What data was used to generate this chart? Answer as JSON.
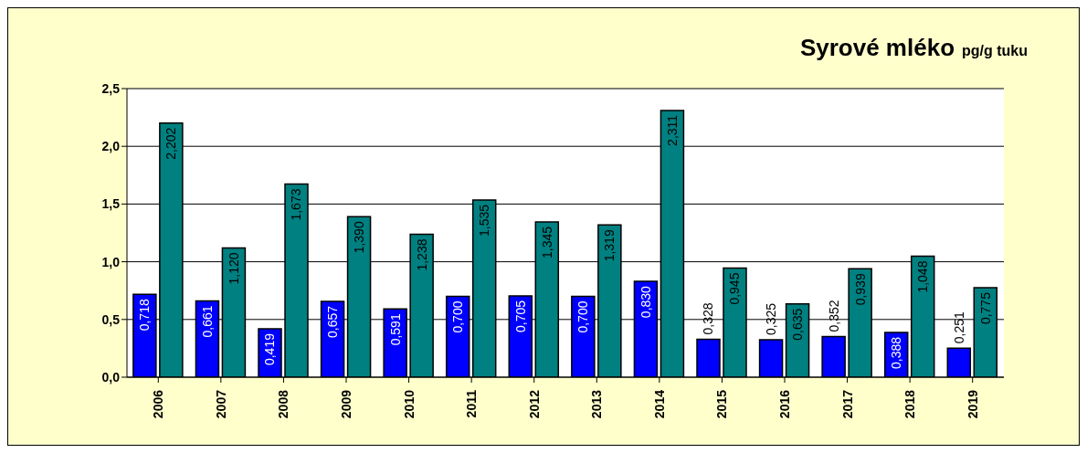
{
  "chart_data": {
    "type": "bar",
    "title": "Syrové mléko",
    "subtitle": "pg/g tuku",
    "categories": [
      "2006",
      "2007",
      "2008",
      "2009",
      "2010",
      "2011",
      "2012",
      "2013",
      "2014",
      "2015",
      "2016",
      "2017",
      "2018",
      "2019"
    ],
    "series": [
      {
        "color": "#0000ff",
        "values": [
          0.718,
          0.661,
          0.419,
          0.657,
          0.591,
          0.7,
          0.705,
          0.7,
          0.83,
          0.328,
          0.325,
          0.352,
          0.388,
          0.251
        ],
        "value_labels": [
          "0,718",
          "0,661",
          "0,419",
          "0,657",
          "0,591",
          "0,700",
          "0,705",
          "0,700",
          "0,830",
          "0,328",
          "0,325",
          "0,352",
          "0,388",
          "0,251"
        ]
      },
      {
        "color": "#008080",
        "values": [
          2.202,
          1.12,
          1.673,
          1.39,
          1.238,
          1.535,
          1.345,
          1.319,
          2.311,
          0.945,
          0.635,
          0.939,
          1.048,
          0.775
        ],
        "value_labels": [
          "2,202",
          "1,120",
          "1,673",
          "1,390",
          "1,238",
          "1,535",
          "1,345",
          "1,319",
          "2,311",
          "0,945",
          "0,635",
          "0,939",
          "1,048",
          "0,775"
        ]
      }
    ],
    "ylim": [
      0,
      2.5
    ],
    "yticks": [
      {
        "value": 0,
        "label": "0,0"
      },
      {
        "value": 0.5,
        "label": "0,5"
      },
      {
        "value": 1,
        "label": "1,0"
      },
      {
        "value": 1.5,
        "label": "1,5"
      },
      {
        "value": 2,
        "label": "2,0"
      },
      {
        "value": 2.5,
        "label": "2,5"
      }
    ],
    "grid": "y",
    "legend": false
  }
}
